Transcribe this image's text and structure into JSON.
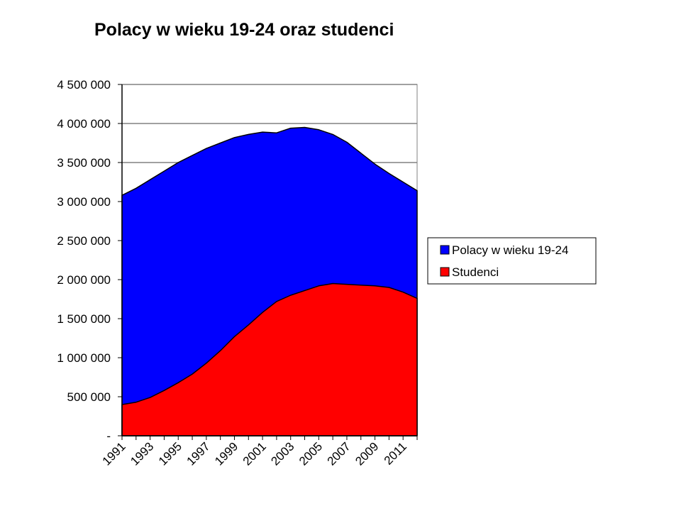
{
  "chart_data": {
    "type": "area",
    "title": "Polacy w wieku 19-24 oraz studenci",
    "xlabel": "",
    "ylabel": "",
    "x": [
      1991,
      1992,
      1993,
      1994,
      1995,
      1996,
      1997,
      1998,
      1999,
      2000,
      2001,
      2002,
      2003,
      2004,
      2005,
      2006,
      2007,
      2008,
      2009,
      2010,
      2011,
      2012
    ],
    "x_tick_labels": [
      "1991",
      "1993",
      "1995",
      "1997",
      "1999",
      "2001",
      "2003",
      "2005",
      "2007",
      "2009",
      "2011"
    ],
    "y_tick_labels": [
      "-",
      "500 000",
      "1 000 000",
      "1 500 000",
      "2 000 000",
      "2 500 000",
      "3 000 000",
      "3 500 000",
      "4 000 000",
      "4 500 000"
    ],
    "ylim": [
      0,
      4500000
    ],
    "y_tick_step": 500000,
    "grid": true,
    "legend_position": "right",
    "series": [
      {
        "name": "Polacy w wieku 19-24",
        "color": "#0000ff",
        "values": [
          3080000,
          3170000,
          3280000,
          3390000,
          3500000,
          3590000,
          3680000,
          3750000,
          3820000,
          3860000,
          3890000,
          3880000,
          3940000,
          3950000,
          3920000,
          3860000,
          3760000,
          3620000,
          3480000,
          3360000,
          3250000,
          3140000
        ]
      },
      {
        "name": "Studenci",
        "color": "#ff0000",
        "values": [
          400000,
          430000,
          490000,
          580000,
          680000,
          790000,
          930000,
          1090000,
          1270000,
          1420000,
          1580000,
          1720000,
          1800000,
          1860000,
          1920000,
          1950000,
          1940000,
          1930000,
          1920000,
          1900000,
          1840000,
          1760000
        ]
      }
    ]
  }
}
